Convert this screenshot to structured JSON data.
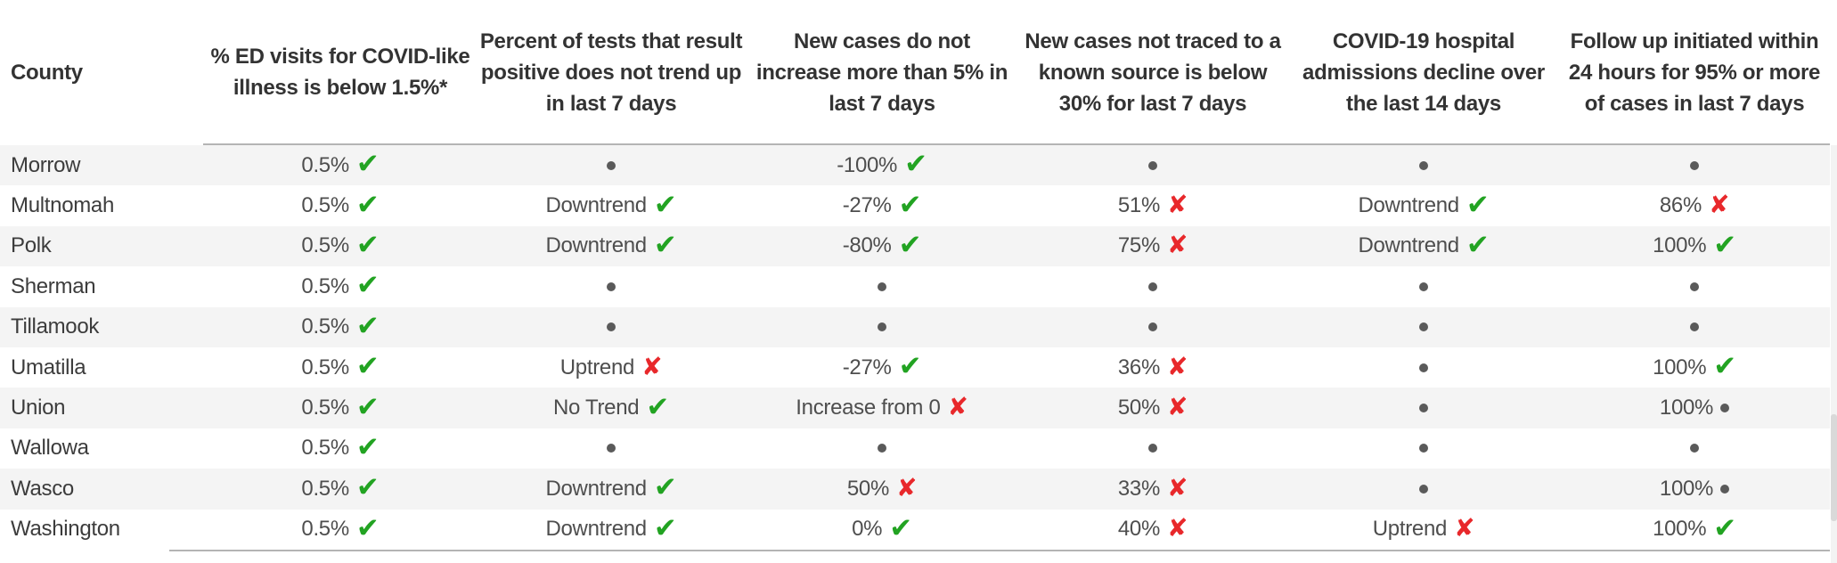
{
  "colors": {
    "header_text": "#333333",
    "cell_text": "#4e4e4e",
    "county_text": "#3c3c3c",
    "check_green": "#22a322",
    "cross_red": "#e8282b",
    "dot_gray": "#5a5a5a",
    "rule_gray": "#b4b4b4",
    "row_alt_gray": "#f4f4f4",
    "scroll_track": "#f3f3f3",
    "scroll_thumb": "#d9d9d9"
  },
  "glyphs": {
    "check": "✔",
    "cross": "✘"
  },
  "chart_data": {
    "type": "table",
    "title": "",
    "columns": [
      {
        "id": "county",
        "label": "County"
      },
      {
        "id": "ed_visits",
        "label": "% ED visits for COVID-like illness is below 1.5%*"
      },
      {
        "id": "test_positive_trend",
        "label": "Percent of tests that result positive does not trend up in last 7 days"
      },
      {
        "id": "new_case_increase",
        "label": "New cases do not increase more than 5% in last 7 days"
      },
      {
        "id": "untraced_cases",
        "label": "New cases not traced to a known source is below 30% for last 7 days"
      },
      {
        "id": "hospital_admissions",
        "label": "COVID-19 hospital admissions decline over the last 14 days"
      },
      {
        "id": "follow_up",
        "label": "Follow up initiated within 24 hours for 95% or more of cases in last 7 days"
      }
    ],
    "rows": [
      {
        "county": "Morrow",
        "cells": [
          {
            "text": "0.5%",
            "mark": "check"
          },
          {
            "text": "",
            "mark": "dot"
          },
          {
            "text": "-100%",
            "mark": "check"
          },
          {
            "text": "",
            "mark": "dot"
          },
          {
            "text": "",
            "mark": "dot"
          },
          {
            "text": "",
            "mark": "dot"
          }
        ]
      },
      {
        "county": "Multnomah",
        "cells": [
          {
            "text": "0.5%",
            "mark": "check"
          },
          {
            "text": "Downtrend",
            "mark": "check"
          },
          {
            "text": "-27%",
            "mark": "check"
          },
          {
            "text": "51%",
            "mark": "cross"
          },
          {
            "text": "Downtrend",
            "mark": "check"
          },
          {
            "text": "86%",
            "mark": "cross"
          }
        ]
      },
      {
        "county": "Polk",
        "cells": [
          {
            "text": "0.5%",
            "mark": "check"
          },
          {
            "text": "Downtrend",
            "mark": "check"
          },
          {
            "text": "-80%",
            "mark": "check"
          },
          {
            "text": "75%",
            "mark": "cross"
          },
          {
            "text": "Downtrend",
            "mark": "check"
          },
          {
            "text": "100%",
            "mark": "check"
          }
        ]
      },
      {
        "county": "Sherman",
        "cells": [
          {
            "text": "0.5%",
            "mark": "check"
          },
          {
            "text": "",
            "mark": "dot"
          },
          {
            "text": "",
            "mark": "dot"
          },
          {
            "text": "",
            "mark": "dot"
          },
          {
            "text": "",
            "mark": "dot"
          },
          {
            "text": "",
            "mark": "dot"
          }
        ]
      },
      {
        "county": "Tillamook",
        "cells": [
          {
            "text": "0.5%",
            "mark": "check"
          },
          {
            "text": "",
            "mark": "dot"
          },
          {
            "text": "",
            "mark": "dot"
          },
          {
            "text": "",
            "mark": "dot"
          },
          {
            "text": "",
            "mark": "dot"
          },
          {
            "text": "",
            "mark": "dot"
          }
        ]
      },
      {
        "county": "Umatilla",
        "cells": [
          {
            "text": "0.5%",
            "mark": "check"
          },
          {
            "text": "Uptrend",
            "mark": "cross"
          },
          {
            "text": "-27%",
            "mark": "check"
          },
          {
            "text": "36%",
            "mark": "cross"
          },
          {
            "text": "",
            "mark": "dot"
          },
          {
            "text": "100%",
            "mark": "check"
          }
        ]
      },
      {
        "county": "Union",
        "cells": [
          {
            "text": "0.5%",
            "mark": "check"
          },
          {
            "text": "No Trend",
            "mark": "check"
          },
          {
            "text": "Increase from 0",
            "mark": "cross"
          },
          {
            "text": "50%",
            "mark": "cross"
          },
          {
            "text": "",
            "mark": "dot"
          },
          {
            "text": "100%",
            "mark": "dot"
          }
        ]
      },
      {
        "county": "Wallowa",
        "cells": [
          {
            "text": "0.5%",
            "mark": "check"
          },
          {
            "text": "",
            "mark": "dot"
          },
          {
            "text": "",
            "mark": "dot"
          },
          {
            "text": "",
            "mark": "dot"
          },
          {
            "text": "",
            "mark": "dot"
          },
          {
            "text": "",
            "mark": "dot"
          }
        ]
      },
      {
        "county": "Wasco",
        "cells": [
          {
            "text": "0.5%",
            "mark": "check"
          },
          {
            "text": "Downtrend",
            "mark": "check"
          },
          {
            "text": "50%",
            "mark": "cross"
          },
          {
            "text": "33%",
            "mark": "cross"
          },
          {
            "text": "",
            "mark": "dot"
          },
          {
            "text": "100%",
            "mark": "dot"
          }
        ]
      },
      {
        "county": "Washington",
        "cells": [
          {
            "text": "0.5%",
            "mark": "check"
          },
          {
            "text": "Downtrend",
            "mark": "check"
          },
          {
            "text": "0%",
            "mark": "check"
          },
          {
            "text": "40%",
            "mark": "cross"
          },
          {
            "text": "Uptrend",
            "mark": "cross"
          },
          {
            "text": "100%",
            "mark": "check"
          }
        ]
      }
    ]
  }
}
